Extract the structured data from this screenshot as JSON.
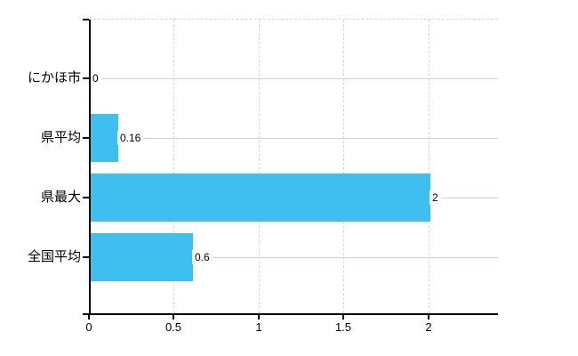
{
  "chart_data": {
    "type": "bar",
    "orientation": "horizontal",
    "title": "",
    "xlabel": "",
    "ylabel": "",
    "categories": [
      "にかほ市",
      "県平均",
      "県最大",
      "全国平均"
    ],
    "values": [
      0,
      0.16,
      2,
      0.6
    ],
    "value_labels": [
      "0",
      "0.16",
      "2",
      "0.6"
    ],
    "xticks": [
      0,
      0.5,
      1,
      1.5,
      2
    ],
    "xtick_labels": [
      "0",
      "0.5",
      "1",
      "1.5",
      "2"
    ],
    "xlim": [
      0,
      2.41
    ],
    "legend": "none",
    "grid": {
      "vertical_gridlines": "dashed",
      "horizontal_gridlines": "solid",
      "top_border": "dashed",
      "right_border": "none"
    },
    "colors": {
      "bar": "#3ebfef",
      "axis": "#000000",
      "text": "#000000",
      "vertical_gridline": "#d8d8dc",
      "horizontal_gridline": "#ccd5cc",
      "top_border": "#d8d8d8",
      "background": "#ffffff"
    }
  }
}
